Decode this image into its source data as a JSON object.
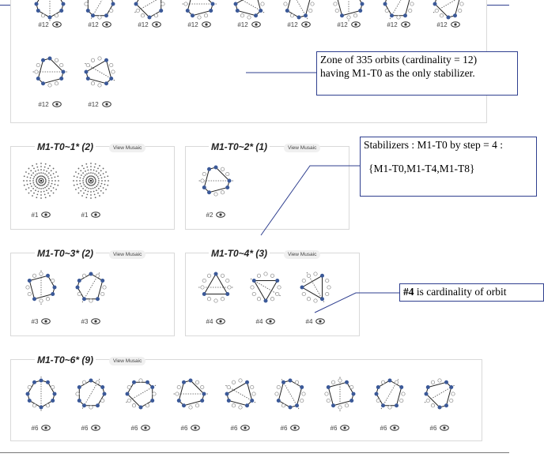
{
  "colors": {
    "dot": "#3b5998",
    "line": "#222222",
    "rule": "#2f3f8f",
    "border": "#d9d9d9"
  },
  "zone_panel": {
    "top_row": [
      "#12",
      "#12",
      "#12",
      "#12",
      "#12",
      "#12",
      "#12",
      "#12",
      "#12"
    ],
    "bottom_row": [
      "#12",
      "#12"
    ],
    "eye_icon": "eye-icon"
  },
  "groups": [
    {
      "title": "M1-T0~1* (2)",
      "view": "View Musaic",
      "orbits": [
        "#1",
        "#1"
      ]
    },
    {
      "title": "M1-T0~2* (1)",
      "view": "View Musaic",
      "orbits": [
        "#2"
      ]
    },
    {
      "title": "M1-T0~3* (2)",
      "view": "View Musaic",
      "orbits": [
        "#3",
        "#3"
      ]
    },
    {
      "title": "M1-T0~4* (3)",
      "view": "View Musaic",
      "orbits": [
        "#4",
        "#4",
        "#4"
      ]
    },
    {
      "title": "M1-T0~6* (9)",
      "view": "View Musaic",
      "orbits": [
        "#6",
        "#6",
        "#6",
        "#6",
        "#6",
        "#6",
        "#6",
        "#6",
        "#6"
      ]
    }
  ],
  "annotations": {
    "zone": {
      "line1": "Zone of 335 orbits (cardinality = 12)",
      "line2": "having M1-T0 as the only stabilizer."
    },
    "stabilizers": {
      "line1": "Stabilizers : M1-T0 by step = 4 :",
      "line2": "{M1-T0,M1-T4,M1-T8}"
    },
    "cardinality": {
      "bold": "#4",
      "rest": " is cardinality of orbit"
    }
  }
}
